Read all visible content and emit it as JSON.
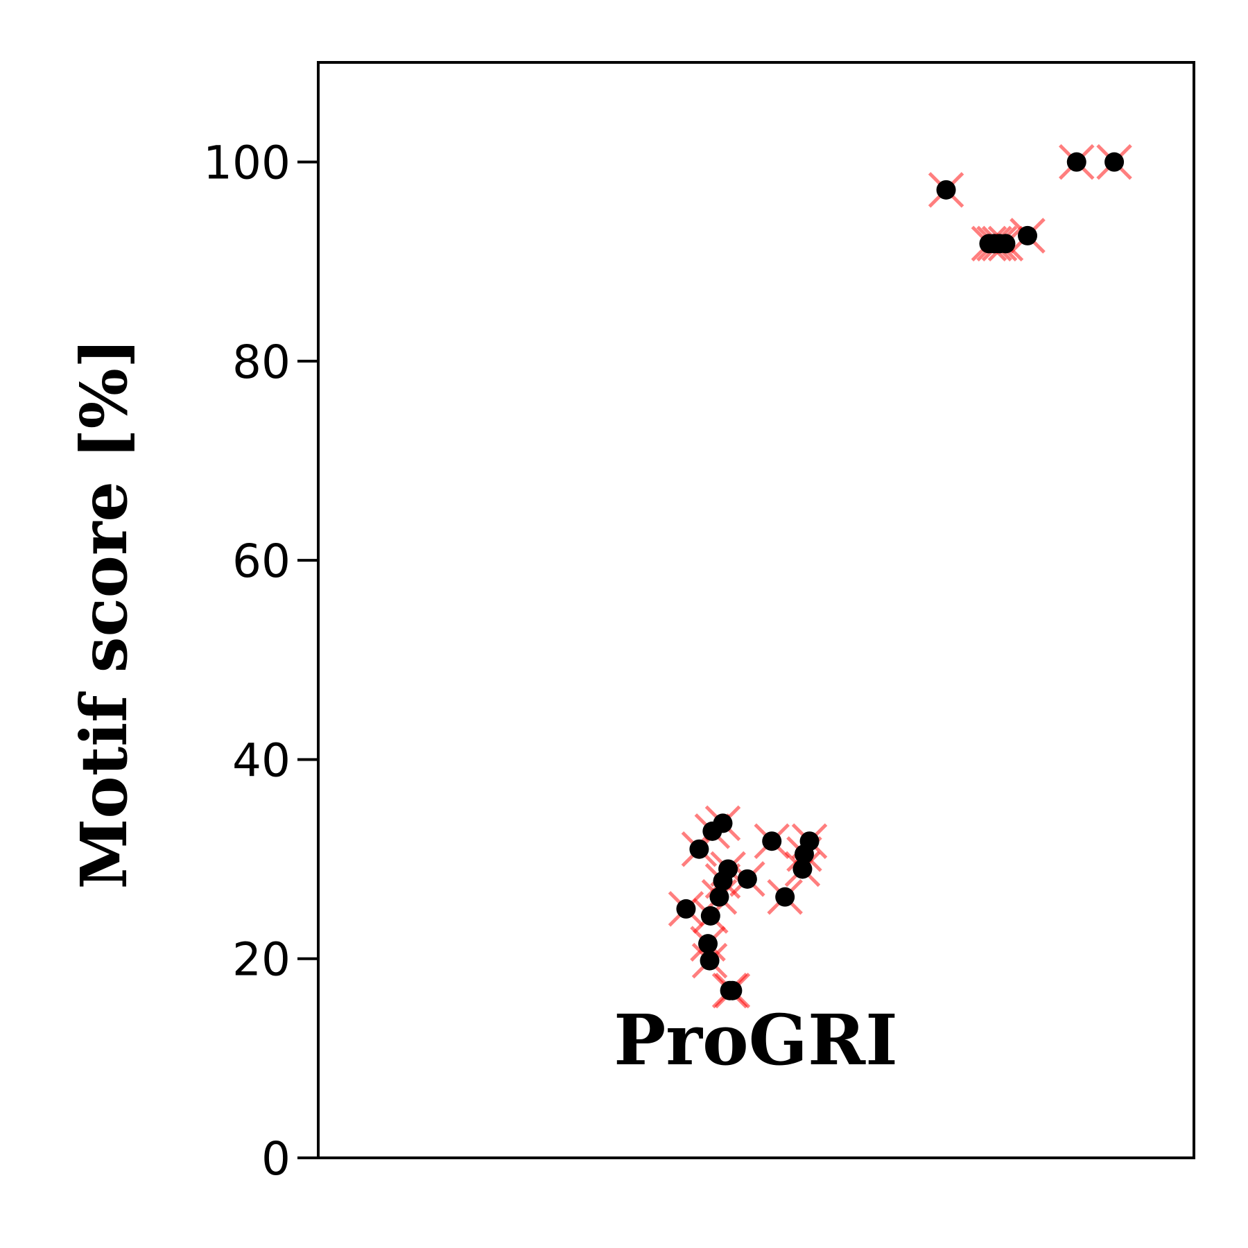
{
  "chart_data": {
    "type": "scatter",
    "ylabel": "Motif score [%]",
    "xlabel": "",
    "ylim": [
      0,
      110
    ],
    "xlim": [
      0,
      1
    ],
    "yticks": [
      0,
      20,
      40,
      60,
      80,
      100
    ],
    "ytick_labels": [
      "0",
      "20",
      "40",
      "60",
      "80",
      "100"
    ],
    "x_ticks_shown": false,
    "grid": false,
    "annotation": "ProGRI",
    "colors": {
      "point": "#000000",
      "cross": "#ff0000"
    },
    "series": [
      {
        "marker": "filled-circle-with-x",
        "points": [
          {
            "x": 0.42,
            "y": 25.0
          },
          {
            "x": 0.435,
            "y": 31.0
          },
          {
            "x": 0.445,
            "y": 21.5
          },
          {
            "x": 0.447,
            "y": 19.8
          },
          {
            "x": 0.448,
            "y": 24.3
          },
          {
            "x": 0.45,
            "y": 32.8
          },
          {
            "x": 0.458,
            "y": 26.2
          },
          {
            "x": 0.462,
            "y": 33.6
          },
          {
            "x": 0.462,
            "y": 27.8
          },
          {
            "x": 0.468,
            "y": 29.0
          },
          {
            "x": 0.47,
            "y": 16.8
          },
          {
            "x": 0.473,
            "y": 16.8
          },
          {
            "x": 0.49,
            "y": 28.0
          },
          {
            "x": 0.518,
            "y": 31.8
          },
          {
            "x": 0.533,
            "y": 26.2
          },
          {
            "x": 0.553,
            "y": 29.0
          },
          {
            "x": 0.555,
            "y": 30.5
          },
          {
            "x": 0.561,
            "y": 31.8
          },
          {
            "x": 0.717,
            "y": 97.2
          },
          {
            "x": 0.766,
            "y": 91.8
          },
          {
            "x": 0.772,
            "y": 91.8
          },
          {
            "x": 0.778,
            "y": 91.8
          },
          {
            "x": 0.785,
            "y": 91.8
          },
          {
            "x": 0.81,
            "y": 92.6
          },
          {
            "x": 0.866,
            "y": 100.0
          },
          {
            "x": 0.909,
            "y": 100.0
          }
        ]
      }
    ]
  }
}
